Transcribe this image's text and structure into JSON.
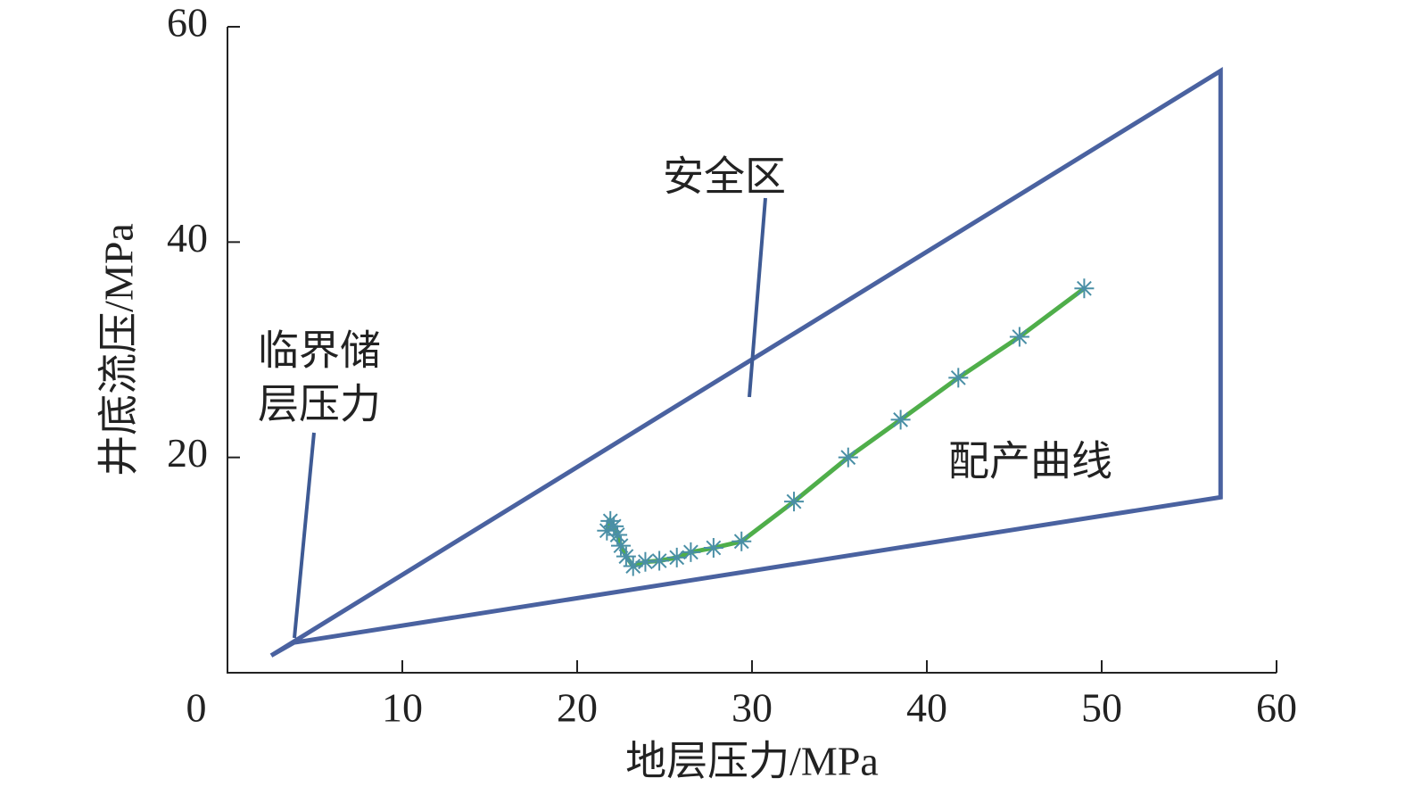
{
  "chart_data": {
    "type": "line",
    "x_label": "地层压力/MPa",
    "y_label": "井底流压/MPa",
    "xlim": [
      0,
      60
    ],
    "ylim": [
      0,
      60
    ],
    "xticks": [
      0,
      10,
      20,
      30,
      40,
      50,
      60
    ],
    "yticks": [
      20,
      40,
      60
    ],
    "series": [
      {
        "color": "#4a62a0",
        "marker": "none",
        "x": [
          2.5,
          56.8,
          56.8,
          3.8,
          2.5
        ],
        "values": [
          1.6,
          55.9,
          16.3,
          2.8,
          1.6
        ]
      },
      {
        "color": "#4fae4a",
        "marker_color": "#4a8fa6",
        "marker": "asterisk",
        "x": [
          49.0,
          45.3,
          41.8,
          38.5,
          35.5,
          32.4,
          29.4,
          27.8,
          26.5,
          25.7,
          24.7,
          23.9,
          23.2,
          22.8,
          22.5,
          22.3,
          22.1,
          21.9,
          21.7
        ],
        "values": [
          35.7,
          31.2,
          27.4,
          23.5,
          20.0,
          15.9,
          12.2,
          11.6,
          11.2,
          10.7,
          10.4,
          10.3,
          9.9,
          10.8,
          11.8,
          12.8,
          13.6,
          14.1,
          13.2
        ]
      }
    ],
    "annotations": [
      {
        "lines": [
          "安全区"
        ]
      },
      {
        "lines": [
          "临界储",
          "层压力"
        ]
      },
      {
        "lines": [
          "配产曲线"
        ]
      }
    ]
  }
}
